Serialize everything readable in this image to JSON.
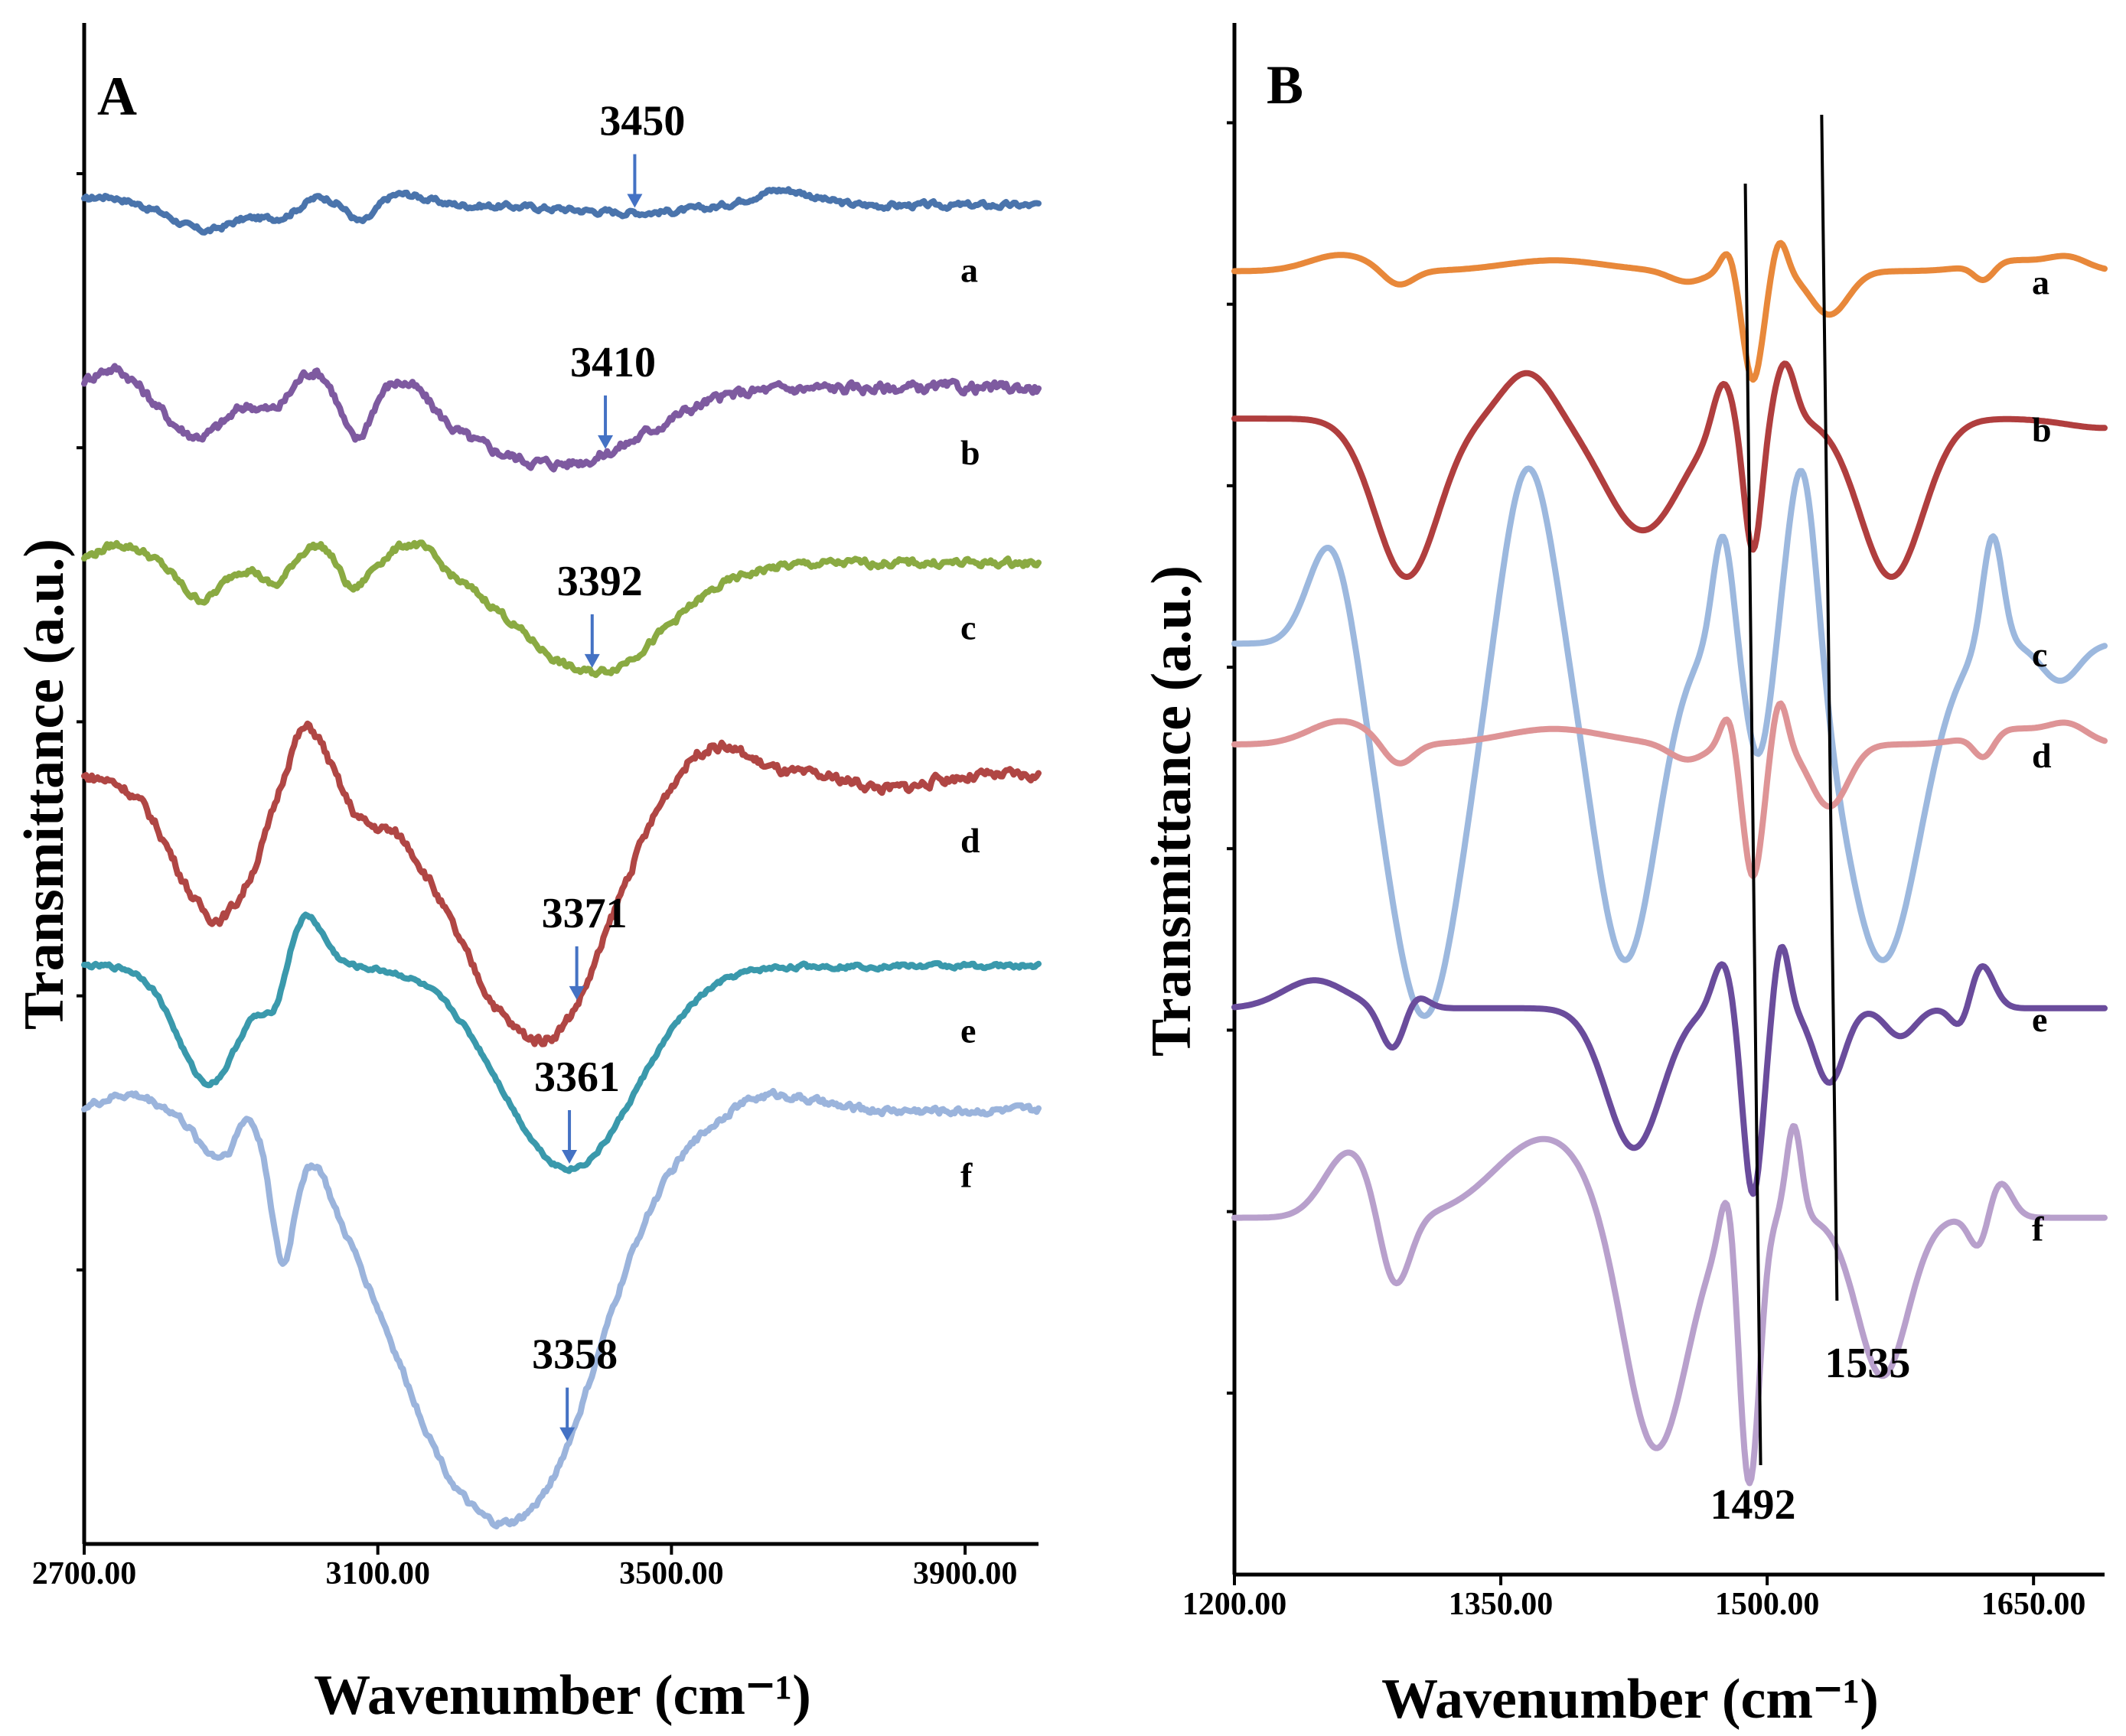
{
  "chart_data": [
    {
      "type": "line",
      "panel_label": "A",
      "xlabel": "Wavenumber (cm⁻¹)",
      "ylabel": "Transmittance  (a.u.)",
      "xlim": [
        2700,
        4000
      ],
      "x_ticks": [
        2700,
        3100,
        3500,
        3900
      ],
      "x_tick_labels": [
        "2700.00",
        "3100.00",
        "3500.00",
        "3900.00"
      ],
      "y_ticks_count": 5,
      "grid": false,
      "colors": {
        "a": "#4a74ac",
        "b": "#7e5aa0",
        "c": "#8aaa42",
        "d": "#b04644",
        "e": "#3a99ac",
        "f": "#9bb4dc",
        "arrow": "#4472c4"
      },
      "series": [
        {
          "name": "a",
          "offset": 0.88,
          "amp": 0.03,
          "noise": 0.002,
          "dips": [
            [
              2865,
              55,
              0.55
            ],
            [
              2960,
              40,
              0.25
            ],
            [
              3080,
              25,
              0.45
            ],
            [
              3450,
              120,
              0.15
            ]
          ],
          "bumps": [
            [
              2730,
              40,
              0.2
            ],
            [
              3020,
              30,
              0.2
            ],
            [
              3130,
              50,
              0.25
            ],
            [
              3650,
              60,
              0.35
            ]
          ]
        },
        {
          "name": "b",
          "offset": 0.76,
          "amp": 0.045,
          "noise": 0.0035,
          "dips": [
            [
              2855,
              60,
              0.7
            ],
            [
              2960,
              30,
              0.3
            ],
            [
              3070,
              25,
              0.7
            ],
            [
              3300,
              160,
              0.9
            ],
            [
              3420,
              120,
              0.4
            ]
          ],
          "bumps": [
            [
              2740,
              40,
              0.3
            ],
            [
              3010,
              35,
              0.3
            ],
            [
              3140,
              45,
              0.4
            ]
          ]
        },
        {
          "name": "c",
          "offset": 0.645,
          "amp": 0.08,
          "noise": 0.0025,
          "dips": [
            [
              2860,
              40,
              0.3
            ],
            [
              2960,
              25,
              0.2
            ],
            [
              3065,
              25,
              0.25
            ],
            [
              3392,
              140,
              0.9
            ]
          ],
          "bumps": [
            [
              2750,
              45,
              0.15
            ],
            [
              3020,
              40,
              0.15
            ],
            [
              3150,
              40,
              0.2
            ]
          ]
        },
        {
          "name": "d",
          "offset": 0.505,
          "amp": 0.17,
          "noise": 0.0035,
          "dips": [
            [
              2880,
              80,
              0.55
            ],
            [
              3080,
              40,
              0.1
            ],
            [
              3300,
              140,
              0.95
            ],
            [
              3371,
              70,
              0.15
            ],
            [
              3800,
              60,
              0.05
            ]
          ],
          "bumps": [
            [
              3000,
              40,
              0.25
            ],
            [
              3550,
              70,
              0.15
            ]
          ]
        },
        {
          "name": "e",
          "offset": 0.38,
          "amp": 0.14,
          "noise": 0.0015,
          "dips": [
            [
              2870,
              60,
              0.55
            ],
            [
              2960,
              25,
              0.2
            ],
            [
              3361,
              130,
              0.95
            ]
          ],
          "bumps": [
            [
              3000,
              35,
              0.25
            ]
          ]
        },
        {
          "name": "f",
          "offset": 0.285,
          "amp": 0.26,
          "noise": 0.0025,
          "dips": [
            [
              2880,
              40,
              0.1
            ],
            [
              2970,
              20,
              0.3
            ],
            [
              3250,
              180,
              1.0
            ],
            [
              3358,
              90,
              0.15
            ]
          ],
          "bumps": [
            [
              2760,
              50,
              0.04
            ],
            [
              2920,
              15,
              0.05
            ],
            [
              3020,
              18,
              0.05
            ],
            [
              3630,
              80,
              0.05
            ]
          ]
        }
      ],
      "peak_labels": [
        {
          "label": "3450",
          "curve": "a",
          "x": 3450
        },
        {
          "label": "3410",
          "curve": "b",
          "x": 3410
        },
        {
          "label": "3392",
          "curve": "c",
          "x": 3392
        },
        {
          "label": "3371",
          "curve": "d",
          "x": 3371
        },
        {
          "label": "3361",
          "curve": "e",
          "x": 3361
        },
        {
          "label": "3358",
          "curve": "f",
          "x": 3358
        }
      ],
      "curve_labels": [
        "a",
        "b",
        "c",
        "d",
        "e",
        "f"
      ]
    },
    {
      "type": "line",
      "panel_label": "B",
      "xlabel": "Wavenumber (cm⁻¹)",
      "ylabel": "Transmittance  (a.u.)",
      "xlim": [
        1200,
        1690
      ],
      "x_ticks": [
        1200,
        1350,
        1500,
        1650
      ],
      "x_tick_labels": [
        "1200.00",
        "1350.00",
        "1500.00",
        "1650.00"
      ],
      "y_ticks_count": 8,
      "grid": false,
      "colors": {
        "a": "#e8883a",
        "b": "#b03e3e",
        "c": "#9cb8de",
        "d": "#de9496",
        "e": "#6a4c9c",
        "f": "#b8a0cc"
      },
      "series": [
        {
          "name": "a",
          "offset": 0.84,
          "amp": 0.07,
          "noise": 0.0,
          "dips": [
            [
              1292,
              12,
              0.15
            ],
            [
              1455,
              14,
              0.1
            ],
            [
              1492,
              8,
              1.0
            ],
            [
              1535,
              15,
              0.4
            ],
            [
              1622,
              8,
              0.15
            ]
          ],
          "bumps": [
            [
              1260,
              25,
              0.15
            ],
            [
              1380,
              40,
              0.1
            ],
            [
              1478,
              6,
              0.2
            ],
            [
              1507,
              6,
              0.3
            ],
            [
              1640,
              30,
              0.1
            ],
            [
              1670,
              15,
              0.1
            ]
          ]
        },
        {
          "name": "b",
          "offset": 0.745,
          "amp": 0.12,
          "noise": 0.0,
          "dips": [
            [
              1297,
              25,
              0.85
            ],
            [
              1430,
              30,
              0.6
            ],
            [
              1492,
              7,
              0.7
            ],
            [
              1570,
              25,
              0.85
            ],
            [
              1690,
              30,
              0.05
            ]
          ],
          "bumps": [
            [
              1365,
              20,
              0.25
            ],
            [
              1475,
              8,
              0.25
            ],
            [
              1510,
              8,
              0.3
            ]
          ]
        },
        {
          "name": "c",
          "offset": 0.6,
          "amp": 0.24,
          "noise": 0.0,
          "dips": [
            [
              1307,
              30,
              1.0
            ],
            [
              1420,
              25,
              0.85
            ],
            [
              1495,
              10,
              0.3
            ],
            [
              1565,
              30,
              0.85
            ],
            [
              1665,
              15,
              0.1
            ]
          ],
          "bumps": [
            [
              1255,
              18,
              0.3
            ],
            [
              1365,
              20,
              0.5
            ],
            [
              1475,
              8,
              0.3
            ],
            [
              1520,
              12,
              0.55
            ],
            [
              1627,
              8,
              0.3
            ]
          ]
        },
        {
          "name": "d",
          "offset": 0.535,
          "amp": 0.1,
          "noise": 0.0,
          "dips": [
            [
              1292,
              12,
              0.15
            ],
            [
              1455,
              14,
              0.1
            ],
            [
              1492,
              8,
              0.85
            ],
            [
              1535,
              15,
              0.4
            ],
            [
              1622,
              8,
              0.15
            ]
          ],
          "bumps": [
            [
              1260,
              25,
              0.15
            ],
            [
              1380,
              40,
              0.1
            ],
            [
              1478,
              6,
              0.2
            ],
            [
              1507,
              6,
              0.3
            ],
            [
              1640,
              30,
              0.1
            ],
            [
              1670,
              15,
              0.1
            ]
          ]
        },
        {
          "name": "e",
          "offset": 0.365,
          "amp": 0.12,
          "noise": 0.0,
          "dips": [
            [
              1290,
              10,
              0.25
            ],
            [
              1425,
              22,
              0.75
            ],
            [
              1492,
              8,
              1.0
            ],
            [
              1535,
              12,
              0.4
            ],
            [
              1575,
              12,
              0.15
            ],
            [
              1610,
              8,
              0.15
            ]
          ],
          "bumps": [
            [
              1245,
              25,
              0.15
            ],
            [
              1300,
              10,
              0.1
            ],
            [
              1475,
              8,
              0.25
            ],
            [
              1508,
              6,
              0.35
            ],
            [
              1620,
              10,
              0.25
            ]
          ]
        },
        {
          "name": "f",
          "offset": 0.23,
          "amp": 0.17,
          "noise": 0.0,
          "dips": [
            [
              1290,
              12,
              0.3
            ],
            [
              1437,
              25,
              0.9
            ],
            [
              1490,
              8,
              1.0
            ],
            [
              1565,
              20,
              0.6
            ],
            [
              1620,
              8,
              0.15
            ]
          ],
          "bumps": [
            [
              1265,
              20,
              0.25
            ],
            [
              1375,
              40,
              0.3
            ],
            [
              1478,
              6,
              0.2
            ],
            [
              1515,
              6,
              0.35
            ],
            [
              1630,
              10,
              0.15
            ]
          ]
        }
      ],
      "reference_lines": [
        {
          "label": "1492",
          "x": 1492
        },
        {
          "label": "1535",
          "x": 1535
        }
      ],
      "curve_labels": [
        "a",
        "b",
        "c",
        "d",
        "e",
        "f"
      ]
    }
  ]
}
